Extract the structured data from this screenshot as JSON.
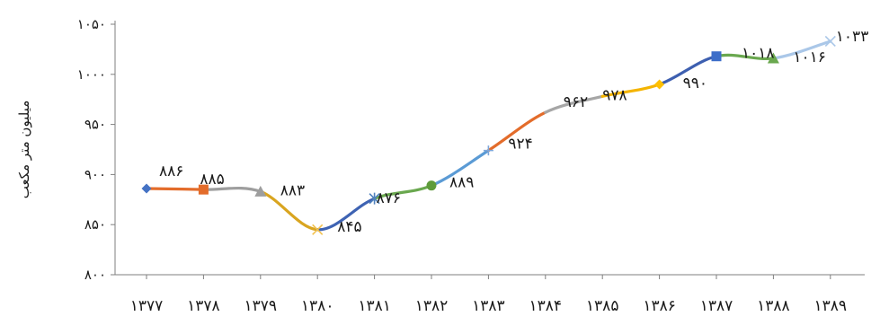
{
  "chart_data": {
    "type": "line",
    "ylabel": "میلیون متر مکعب",
    "xlabel": "",
    "title": "",
    "ylim": [
      800,
      1050
    ],
    "yticks": [
      800,
      850,
      900,
      950,
      1000,
      1050
    ],
    "ytick_labels": [
      "۸۰۰",
      "۸۵۰",
      "۹۰۰",
      "۹۵۰",
      "۱۰۰۰",
      "۱۰۵۰"
    ],
    "categories": [
      "۱۳۷۷",
      "۱۳۷۸",
      "۱۳۷۹",
      "۱۳۸۰",
      "۱۳۸۱",
      "۱۳۸۲",
      "۱۳۸۳",
      "۱۳۸۴",
      "۱۳۸۵",
      "۱۳۸۶",
      "۱۳۸۷",
      "۱۳۸۸",
      "۱۳۸۹"
    ],
    "values": [
      886,
      885,
      883,
      845,
      876,
      889,
      924,
      962,
      978,
      990,
      1018,
      1016,
      1033
    ],
    "point_labels": [
      "۸۸۶",
      "۸۸۵",
      "۸۸۳",
      "۸۴۵",
      "۸۷۶",
      "۸۸۹",
      "۹۲۴",
      "۹۶۲",
      "۹۷۸",
      "۹۹۰",
      "۱۰۱۸",
      "۱۰۱۶",
      "۱۰۳۳"
    ],
    "segment_colors": [
      "#e36c2b",
      "#9e9e9e",
      "#d9a520",
      "#3e63b3",
      "#6aa84f",
      "#5b9bd5",
      "#e36c2b",
      "#a6a6a6",
      "#f4b400",
      "#3d5fb0",
      "#6aa84f",
      "#aac7e8"
    ],
    "markers": [
      {
        "shape": "diamond",
        "color": "#4472c4"
      },
      {
        "shape": "square",
        "color": "#e36c2b"
      },
      {
        "shape": "triangle",
        "color": "#9e9e9e"
      },
      {
        "shape": "x",
        "color": "#f2c14e"
      },
      {
        "shape": "asterisk",
        "color": "#4f81bd"
      },
      {
        "shape": "circle",
        "color": "#5e9b3a"
      },
      {
        "shape": "plus",
        "color": "#7ea6d9"
      },
      {
        "shape": "none",
        "color": "#e36c2b"
      },
      {
        "shape": "none",
        "color": "#a6a6a6"
      },
      {
        "shape": "diamond",
        "color": "#ffc000"
      },
      {
        "shape": "square",
        "color": "#3d6ec9"
      },
      {
        "shape": "triangle",
        "color": "#6aa84f"
      },
      {
        "shape": "x",
        "color": "#aac7e8"
      }
    ],
    "grid": false,
    "legend": "none"
  }
}
